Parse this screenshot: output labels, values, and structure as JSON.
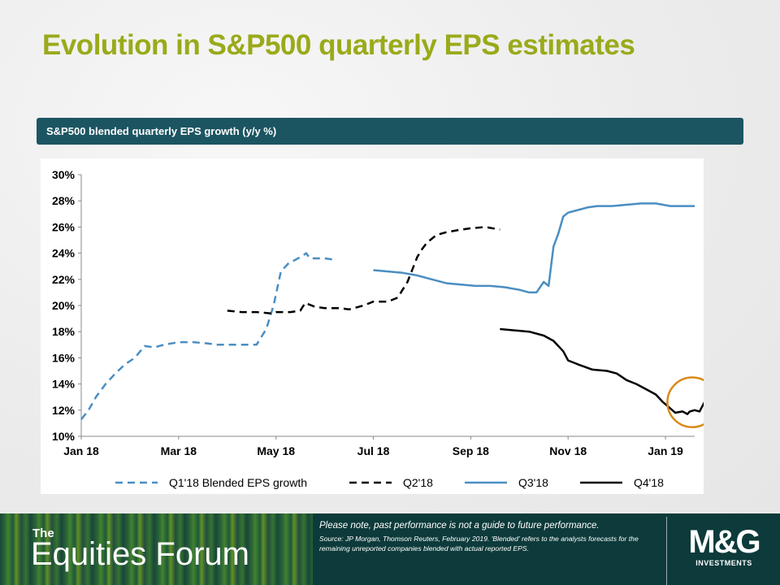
{
  "title": "Evolution in S&P500 quarterly EPS estimates",
  "chart_header": "S&P500 blended quarterly EPS growth (y/y %)",
  "chart_data": {
    "type": "line",
    "title": "",
    "xlabel": "",
    "ylabel": "",
    "ylim": [
      10,
      30
    ],
    "xlim": [
      0,
      12.6
    ],
    "yticks": [
      "10%",
      "12%",
      "14%",
      "16%",
      "18%",
      "20%",
      "22%",
      "24%",
      "26%",
      "28%",
      "30%"
    ],
    "yticks_values": [
      10,
      12,
      14,
      16,
      18,
      20,
      22,
      24,
      26,
      28,
      30
    ],
    "xticks": [
      "Jan 18",
      "Mar 18",
      "May 18",
      "Jul 18",
      "Sep 18",
      "Nov 18",
      "Jan 19"
    ],
    "xticks_values": [
      0,
      2,
      4,
      6,
      8,
      10,
      12
    ],
    "legend_position": "bottom",
    "grid": false,
    "series": [
      {
        "name": "Q1'18 Blended EPS growth",
        "color": "#4a8ec2",
        "dash": "dashed",
        "x": [
          0,
          0.15,
          0.3,
          0.5,
          0.7,
          0.9,
          1.1,
          1.3,
          1.5,
          1.7,
          2.0,
          2.3,
          2.6,
          2.8,
          3.0,
          3.2,
          3.4,
          3.6,
          3.8,
          3.95,
          4.1,
          4.25,
          4.4,
          4.55,
          4.62,
          4.7,
          4.85,
          5.0,
          5.2
        ],
        "y": [
          11.3,
          12.0,
          13.0,
          14.0,
          14.8,
          15.5,
          16.0,
          16.9,
          16.8,
          17.0,
          17.2,
          17.2,
          17.1,
          17.0,
          17.0,
          17.0,
          17.0,
          17.0,
          18.2,
          20.0,
          22.6,
          23.2,
          23.5,
          23.8,
          24.0,
          23.6,
          23.6,
          23.6,
          23.5
        ]
      },
      {
        "name": "Q2'18",
        "color": "#000000",
        "dash": "dashed",
        "x": [
          3.0,
          3.3,
          3.6,
          3.9,
          4.0,
          4.3,
          4.5,
          4.6,
          4.8,
          5.0,
          5.3,
          5.5,
          5.8,
          6.0,
          6.3,
          6.5,
          6.7,
          6.9,
          7.0,
          7.1,
          7.3,
          7.5,
          7.8,
          8.0,
          8.3,
          8.6
        ],
        "y": [
          19.6,
          19.5,
          19.5,
          19.4,
          19.5,
          19.5,
          19.6,
          20.2,
          19.9,
          19.8,
          19.8,
          19.7,
          20.0,
          20.3,
          20.3,
          20.6,
          21.8,
          23.7,
          24.3,
          24.8,
          25.4,
          25.6,
          25.8,
          25.9,
          26.0,
          25.8
        ]
      },
      {
        "name": "Q3'18",
        "color": "#4a8ec2",
        "dash": "solid",
        "x": [
          6.0,
          6.3,
          6.6,
          6.9,
          7.2,
          7.5,
          7.8,
          8.1,
          8.4,
          8.7,
          9.0,
          9.2,
          9.35,
          9.5,
          9.6,
          9.7,
          9.8,
          9.9,
          10.0,
          10.2,
          10.4,
          10.6,
          10.9,
          11.2,
          11.5,
          11.8,
          12.1,
          12.4,
          12.6
        ],
        "y": [
          22.7,
          22.6,
          22.5,
          22.3,
          22.0,
          21.7,
          21.6,
          21.5,
          21.5,
          21.4,
          21.2,
          21.0,
          21.0,
          21.8,
          21.5,
          24.5,
          25.5,
          26.8,
          27.1,
          27.3,
          27.5,
          27.6,
          27.6,
          27.7,
          27.8,
          27.8,
          27.6,
          27.6,
          27.6
        ]
      },
      {
        "name": "Q4'18",
        "color": "#000000",
        "dash": "solid",
        "x": [
          8.6,
          8.9,
          9.2,
          9.5,
          9.7,
          9.9,
          10.0,
          10.2,
          10.5,
          10.8,
          11.0,
          11.2,
          11.4,
          11.6,
          11.8,
          11.95,
          12.05,
          12.2,
          12.35,
          12.45,
          12.5,
          12.6,
          12.7,
          12.8,
          12.9
        ],
        "y": [
          18.2,
          18.1,
          18.0,
          17.7,
          17.3,
          16.5,
          15.8,
          15.5,
          15.1,
          15.0,
          14.8,
          14.3,
          14.0,
          13.6,
          13.2,
          12.6,
          12.3,
          11.8,
          11.9,
          11.7,
          11.9,
          12.0,
          11.9,
          12.6,
          13.4
        ]
      }
    ],
    "annotation": {
      "type": "circle",
      "color": "#d98a1a",
      "center_x": 12.55,
      "center_y": 12.6,
      "radius_y": 1.9
    }
  },
  "footer": {
    "brand_small": "The",
    "brand_big": "Equities Forum",
    "note_main": "Please note, past performance  is not a guide to future performance.",
    "note_source": "Source: JP Morgan, Thomson Reuters, February 2019. 'Blended' refers to the analysts forecasts for the remaining unreported companies blended with actual reported EPS.",
    "logo_mg": "M&G",
    "logo_investments": "INVESTMENTS"
  }
}
